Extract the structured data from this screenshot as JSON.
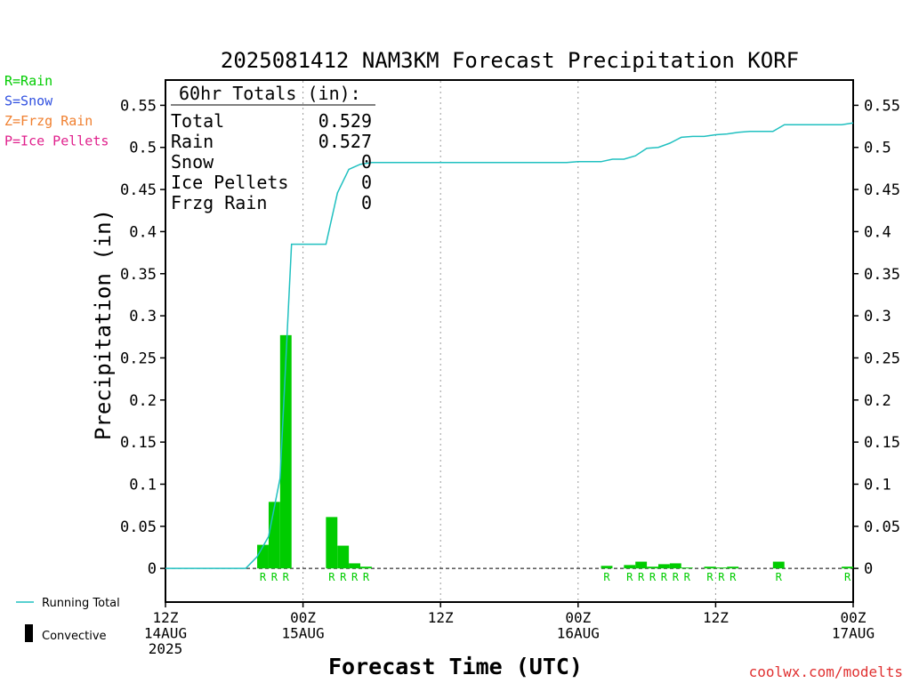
{
  "chart_data": {
    "type": "bar",
    "title": "2025081412 NAM3KM Forecast Precipitation KORF",
    "xlabel": "Forecast Time (UTC)",
    "ylabel": "Precipitation (in)",
    "ylim": [
      -0.04,
      0.58
    ],
    "yticks": [
      0,
      0.05,
      0.1,
      0.15,
      0.2,
      0.25,
      0.3,
      0.35,
      0.4,
      0.45,
      0.5,
      0.55
    ],
    "ytick_labels": [
      "0",
      "0.05",
      "0.1",
      "0.15",
      "0.2",
      "0.25",
      "0.3",
      "0.35",
      "0.4",
      "0.45",
      "0.5",
      "0.55"
    ],
    "x_unit": "forecast hour",
    "xlim": [
      0,
      60
    ],
    "xticks": [
      {
        "hour": 0,
        "lines": [
          "12Z",
          "14AUG",
          "2025"
        ]
      },
      {
        "hour": 12,
        "lines": [
          "00Z",
          "15AUG"
        ]
      },
      {
        "hour": 24,
        "lines": [
          "12Z"
        ]
      },
      {
        "hour": 36,
        "lines": [
          "00Z",
          "16AUG"
        ]
      },
      {
        "hour": 48,
        "lines": [
          "12Z"
        ]
      },
      {
        "hour": 60,
        "lines": [
          "00Z",
          "17AUG"
        ]
      }
    ],
    "grid_x": "dotted vertical lines at 00Z and 12Z",
    "bars_hourly": [
      {
        "hour": 9,
        "value": 0.028,
        "ptype": "R"
      },
      {
        "hour": 10,
        "value": 0.079,
        "ptype": "R"
      },
      {
        "hour": 11,
        "value": 0.277,
        "ptype": "R"
      },
      {
        "hour": 15,
        "value": 0.061,
        "ptype": "R"
      },
      {
        "hour": 16,
        "value": 0.027,
        "ptype": "R"
      },
      {
        "hour": 17,
        "value": 0.006,
        "ptype": "R"
      },
      {
        "hour": 18,
        "value": 0.002,
        "ptype": "R"
      },
      {
        "hour": 39,
        "value": 0.003,
        "ptype": "R"
      },
      {
        "hour": 41,
        "value": 0.004,
        "ptype": "R"
      },
      {
        "hour": 42,
        "value": 0.008,
        "ptype": "R"
      },
      {
        "hour": 43,
        "value": 0.002,
        "ptype": "R"
      },
      {
        "hour": 44,
        "value": 0.005,
        "ptype": "R"
      },
      {
        "hour": 45,
        "value": 0.006,
        "ptype": "R"
      },
      {
        "hour": 46,
        "value": 0.001,
        "ptype": "R"
      },
      {
        "hour": 48,
        "value": 0.002,
        "ptype": "R"
      },
      {
        "hour": 49,
        "value": 0.001,
        "ptype": "R"
      },
      {
        "hour": 50,
        "value": 0.002,
        "ptype": "R"
      },
      {
        "hour": 54,
        "value": 0.008,
        "ptype": "R"
      },
      {
        "hour": 60,
        "value": 0.002,
        "ptype": "R"
      }
    ],
    "running_total": {
      "name": "Running Total",
      "color": "#20c0c0",
      "points": [
        [
          0,
          0
        ],
        [
          7,
          0
        ],
        [
          8,
          0.014
        ],
        [
          9,
          0.038
        ],
        [
          10,
          0.107
        ],
        [
          11,
          0.385
        ],
        [
          12,
          0.385
        ],
        [
          14,
          0.385
        ],
        [
          15,
          0.446
        ],
        [
          16,
          0.474
        ],
        [
          17,
          0.48
        ],
        [
          18,
          0.482
        ],
        [
          34,
          0.482
        ],
        [
          35,
          0.482
        ],
        [
          36,
          0.483
        ],
        [
          37,
          0.483
        ],
        [
          38,
          0.483
        ],
        [
          39,
          0.486
        ],
        [
          40,
          0.486
        ],
        [
          41,
          0.49
        ],
        [
          42,
          0.499
        ],
        [
          43,
          0.5
        ],
        [
          44,
          0.505
        ],
        [
          45,
          0.512
        ],
        [
          46,
          0.513
        ],
        [
          47,
          0.513
        ],
        [
          48,
          0.515
        ],
        [
          49,
          0.516
        ],
        [
          50,
          0.518
        ],
        [
          51,
          0.519
        ],
        [
          52,
          0.519
        ],
        [
          53,
          0.519
        ],
        [
          54,
          0.527
        ],
        [
          58,
          0.527
        ],
        [
          59,
          0.527
        ],
        [
          60,
          0.529
        ]
      ]
    },
    "legend_left": [
      {
        "label": "R=Rain",
        "color": "#00cc00"
      },
      {
        "label": "S=Snow",
        "color": "#3050e0"
      },
      {
        "label": "Z=Frzg Rain",
        "color": "#f08030"
      },
      {
        "label": "P=Ice Pellets",
        "color": "#e0208c"
      }
    ],
    "legend_bottom": {
      "running_total_label": "Running Total",
      "convective_label": "Convective"
    },
    "totals_box": {
      "title": "60hr Totals (in):",
      "rows": [
        {
          "label": "Total",
          "value": "0.529"
        },
        {
          "label": "Rain",
          "value": "0.527"
        },
        {
          "label": "Snow",
          "value": "0"
        },
        {
          "label": "Ice Pellets",
          "value": "0"
        },
        {
          "label": "Frzg Rain",
          "value": "0"
        }
      ]
    },
    "bar_color": "#00cc00",
    "credit": "coolwx.com/modelts"
  }
}
